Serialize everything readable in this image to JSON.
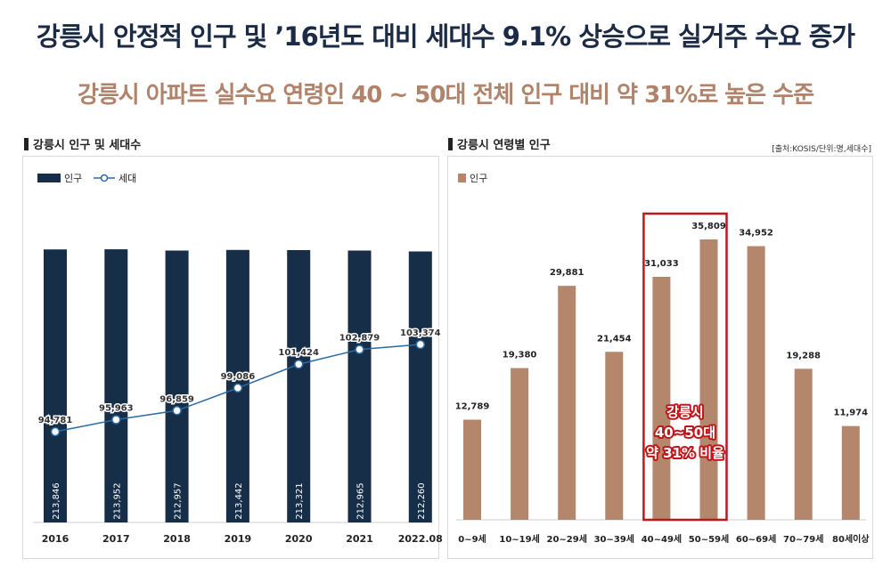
{
  "headline": "강릉시 안정적 인구 및 ’16년도 대비 세대수 9.1% 상승으로 실거주 수요 증가",
  "subheadline": "강릉시 아파트 실수요 연령인 40 ~ 50대 전체 인구 대비 약 31%로 높은 수준",
  "source": "[출처:KOSIS/단위:명,세대수]",
  "colors": {
    "navy": "#172e48",
    "brown": "#b4876d",
    "line": "#2a6aa3",
    "highlight": "#c0161a",
    "headline": "#1b2b45",
    "sub": "#b0836a"
  },
  "chart_data": [
    {
      "type": "bar",
      "title": "강릉시 인구 및 세대수",
      "categories": [
        "2016",
        "2017",
        "2018",
        "2019",
        "2020",
        "2021",
        "2022.08"
      ],
      "series": [
        {
          "name": "인구",
          "type": "bar",
          "values": [
            213846,
            213952,
            212957,
            213442,
            213321,
            212965,
            212260
          ],
          "labels": [
            "213,846",
            "213,952",
            "212,957",
            "213,442",
            "213,321",
            "212,965",
            "212,260"
          ]
        },
        {
          "name": "세대",
          "type": "line",
          "values": [
            94781,
            95963,
            96859,
            99086,
            101424,
            102879,
            103374
          ],
          "labels": [
            "94,781",
            "95,963",
            "96,859",
            "99,086",
            "101,424",
            "102,879",
            "103,374"
          ]
        }
      ],
      "legend": "top-left",
      "grid": false
    },
    {
      "type": "bar",
      "title": "강릉시 연령별 인구",
      "categories": [
        "0~9세",
        "10~19세",
        "20~29세",
        "30~39세",
        "40~49세",
        "50~59세",
        "60~69세",
        "70~79세",
        "80세이상"
      ],
      "series": [
        {
          "name": "인구",
          "values": [
            12789,
            19380,
            29881,
            21454,
            31033,
            35809,
            34952,
            19288,
            11974
          ],
          "labels": [
            "12,789",
            "19,380",
            "29,881",
            "21,454",
            "31,033",
            "35,809",
            "34,952",
            "19,288",
            "11,974"
          ]
        }
      ],
      "highlight": {
        "categories": [
          "40~49세",
          "50~59세"
        ],
        "lines": [
          "강릉시",
          "40~50대",
          "약 31% 비율"
        ]
      },
      "legend": "top-left",
      "grid": false
    }
  ]
}
